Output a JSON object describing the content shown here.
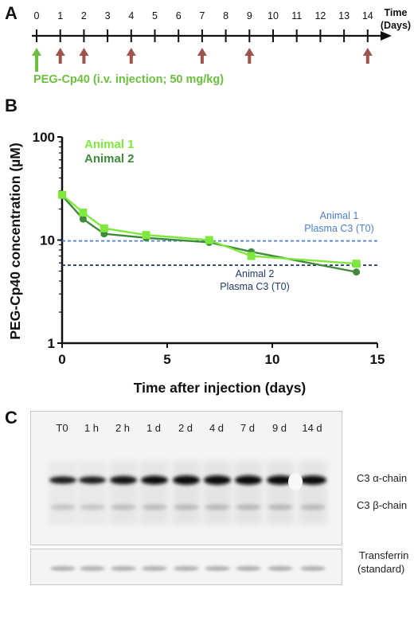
{
  "panel_a": {
    "letter": "A",
    "ticks": [
      "0",
      "1",
      "2",
      "3",
      "4",
      "5",
      "6",
      "7",
      "8",
      "9",
      "10",
      "11",
      "12",
      "13",
      "14"
    ],
    "axis_title_line1": "Time",
    "axis_title_line2": "(Days)",
    "injection_days": [
      0,
      1,
      2,
      4,
      7,
      9,
      14
    ],
    "injection_label": "PEG-Cp40 (i.v. injection; 50 mg/kg)",
    "colors": {
      "arrow": "#a0524d",
      "first_arrow": "#6bbf3f",
      "label": "#6bbf3f"
    }
  },
  "panel_b": {
    "letter": "B",
    "legend": [
      "Animal 1",
      "Animal 2"
    ],
    "ref_line_1": {
      "line1": "Animal 1",
      "line2": "Plasma C3 (T0)"
    },
    "ref_line_2": {
      "line1": "Animal 2",
      "line2": "Plasma C3 (T0)"
    }
  },
  "chart_data": {
    "type": "line",
    "xlabel": "Time after injection (days)",
    "ylabel": "PEG-Cp40 concentration (µM)",
    "xlim": [
      0,
      15
    ],
    "ylim": [
      1,
      100
    ],
    "yscale": "log",
    "x_ticks": [
      "0",
      "5",
      "10",
      "15"
    ],
    "y_ticks": [
      "1",
      "10",
      "100"
    ],
    "series": [
      {
        "name": "Animal 1",
        "color": "#7fe83e",
        "marker": "square",
        "x": [
          0,
          1,
          2,
          4,
          7,
          9,
          14
        ],
        "y": [
          27.5,
          18.5,
          13,
          11.2,
          10,
          7,
          5.9
        ]
      },
      {
        "name": "Animal 2",
        "color": "#3f8a3a",
        "marker": "circle",
        "x": [
          0,
          1,
          2,
          4,
          7,
          9,
          14
        ],
        "y": [
          27,
          16,
          11.5,
          10.5,
          9.5,
          7.7,
          4.9
        ]
      }
    ],
    "reference_lines": [
      {
        "y": 9.8,
        "color": "#4a7fd4"
      },
      {
        "y": 5.7,
        "color": "#1f3a66"
      }
    ]
  },
  "panel_c": {
    "letter": "C",
    "lanes": [
      "T0",
      "1 h",
      "2 h",
      "1 d",
      "2 d",
      "4 d",
      "7 d",
      "9 d",
      "14 d"
    ],
    "band_alpha": "C3 α-chain",
    "band_beta": "C3 β-chain",
    "transferrin_line1": "Transferrin",
    "transferrin_line2": "(standard)",
    "alpha_band_intensity": [
      0.55,
      0.55,
      0.75,
      0.82,
      0.92,
      0.95,
      0.95,
      0.95,
      0.93
    ]
  }
}
